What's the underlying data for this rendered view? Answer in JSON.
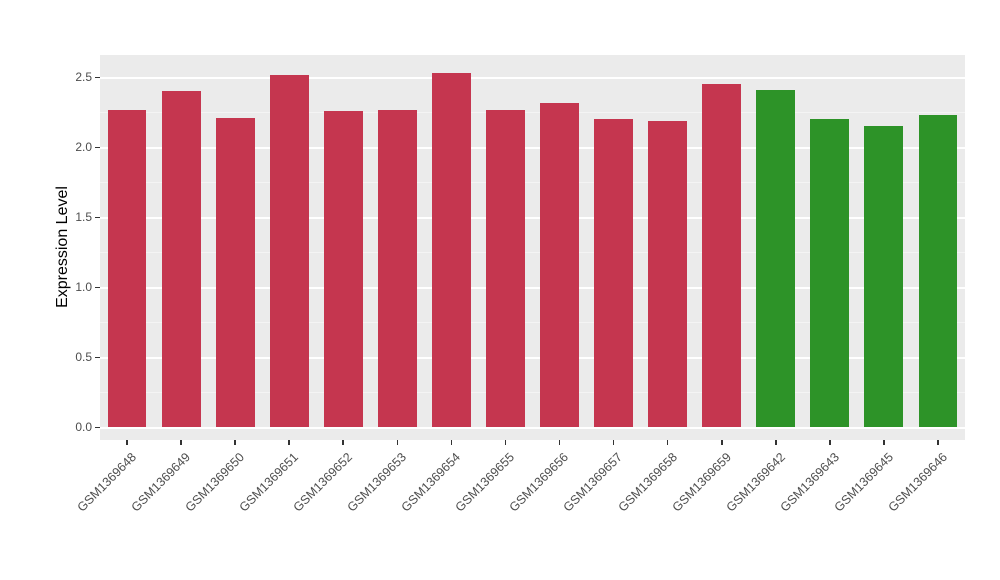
{
  "style": {
    "figure_bg": "#FFFFFF",
    "panel_bg": "#EBEBEB",
    "grid_major": "#FFFFFF",
    "grid_minor": "#F4F4F4",
    "tick_color": "#333333",
    "axis_text_color": "#4D4D4D",
    "axis_title_color": "#000000"
  },
  "chart_data": {
    "type": "bar",
    "title": "",
    "xlabel": "",
    "ylabel": "Expression Level",
    "ylim": [
      0,
      2.65
    ],
    "yticks": [
      0.0,
      0.5,
      1.0,
      1.5,
      2.0,
      2.5
    ],
    "grid": "on",
    "legend": "none",
    "categories": [
      "GSM1369648",
      "GSM1369649",
      "GSM1369650",
      "GSM1369651",
      "GSM1369652",
      "GSM1369653",
      "GSM1369654",
      "GSM1369655",
      "GSM1369656",
      "GSM1369657",
      "GSM1369658",
      "GSM1369659",
      "GSM1369642",
      "GSM1369643",
      "GSM1369645",
      "GSM1369646"
    ],
    "values": [
      2.27,
      2.4,
      2.21,
      2.52,
      2.26,
      2.27,
      2.53,
      2.27,
      2.32,
      2.2,
      2.19,
      2.45,
      2.41,
      2.2,
      2.15,
      2.23
    ],
    "groups": [
      "red",
      "red",
      "red",
      "red",
      "red",
      "red",
      "red",
      "red",
      "red",
      "red",
      "red",
      "red",
      "green",
      "green",
      "green",
      "green"
    ],
    "group_colors": {
      "red": "#C5364F",
      "green": "#2D9328"
    }
  }
}
